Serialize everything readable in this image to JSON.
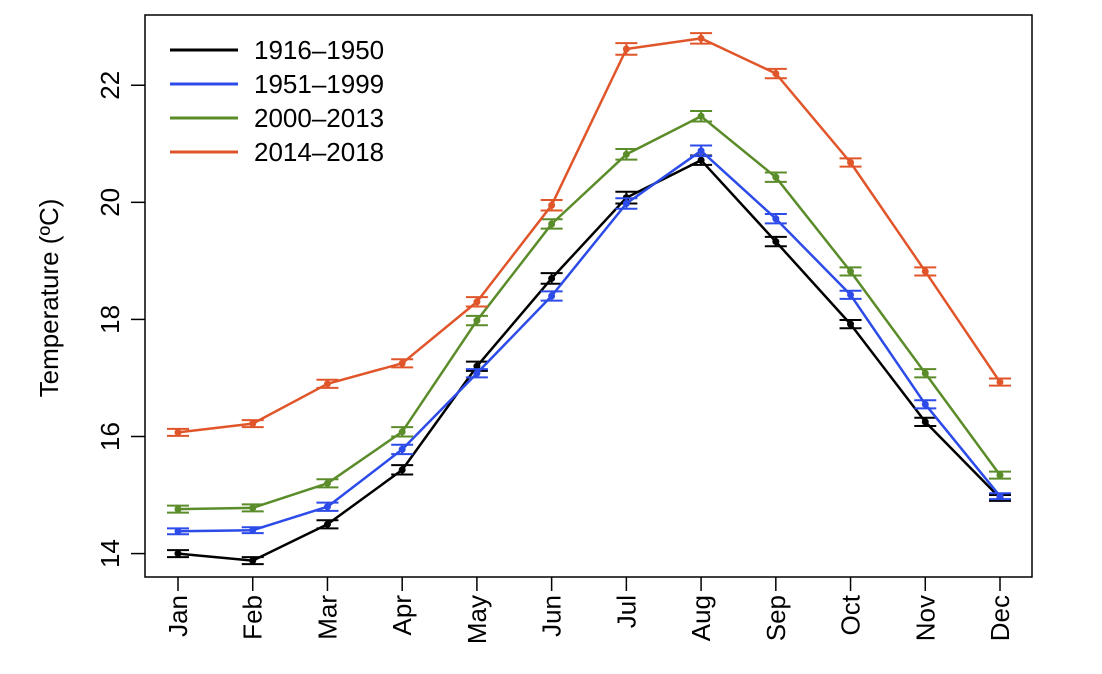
{
  "chart_data": {
    "type": "line",
    "title": "",
    "title_color": "#e8312a",
    "ylabel": "Temperature (ºC)",
    "xlabel": "",
    "ylim": [
      13.6,
      23.2
    ],
    "yticks": [
      14,
      16,
      18,
      20,
      22
    ],
    "categories": [
      "Jan",
      "Feb",
      "Mar",
      "Apr",
      "May",
      "Jun",
      "Jul",
      "Aug",
      "Sep",
      "Oct",
      "Nov",
      "Dec"
    ],
    "grid": false,
    "legend_position": "top-left",
    "error_bars": true,
    "series": [
      {
        "name": "1916–1950",
        "color": "#000000",
        "values": [
          14.0,
          13.88,
          14.5,
          15.43,
          17.2,
          18.7,
          20.08,
          20.72,
          19.33,
          17.92,
          16.25,
          14.95
        ],
        "error": [
          0.06,
          0.06,
          0.07,
          0.08,
          0.08,
          0.09,
          0.1,
          0.08,
          0.08,
          0.07,
          0.07,
          0.05
        ]
      },
      {
        "name": "1951–1999",
        "color": "#2c4be8",
        "values": [
          14.38,
          14.4,
          14.8,
          15.78,
          17.08,
          18.4,
          19.98,
          20.88,
          19.72,
          18.42,
          16.55,
          14.98
        ],
        "error": [
          0.05,
          0.05,
          0.07,
          0.08,
          0.07,
          0.08,
          0.09,
          0.09,
          0.08,
          0.07,
          0.07,
          0.05
        ]
      },
      {
        "name": "2000–2013",
        "color": "#5b8c2a",
        "values": [
          14.76,
          14.78,
          15.2,
          16.08,
          17.98,
          19.63,
          20.82,
          21.47,
          20.43,
          18.82,
          17.08,
          15.34
        ],
        "error": [
          0.06,
          0.06,
          0.07,
          0.08,
          0.08,
          0.08,
          0.09,
          0.09,
          0.08,
          0.07,
          0.07,
          0.06
        ]
      },
      {
        "name": "2014–2018",
        "color": "#e0562a",
        "values": [
          16.07,
          16.22,
          16.9,
          17.25,
          18.3,
          19.95,
          22.62,
          22.8,
          22.2,
          20.68,
          18.82,
          16.93
        ],
        "error": [
          0.06,
          0.06,
          0.07,
          0.07,
          0.08,
          0.09,
          0.1,
          0.09,
          0.08,
          0.07,
          0.07,
          0.06
        ]
      }
    ]
  }
}
